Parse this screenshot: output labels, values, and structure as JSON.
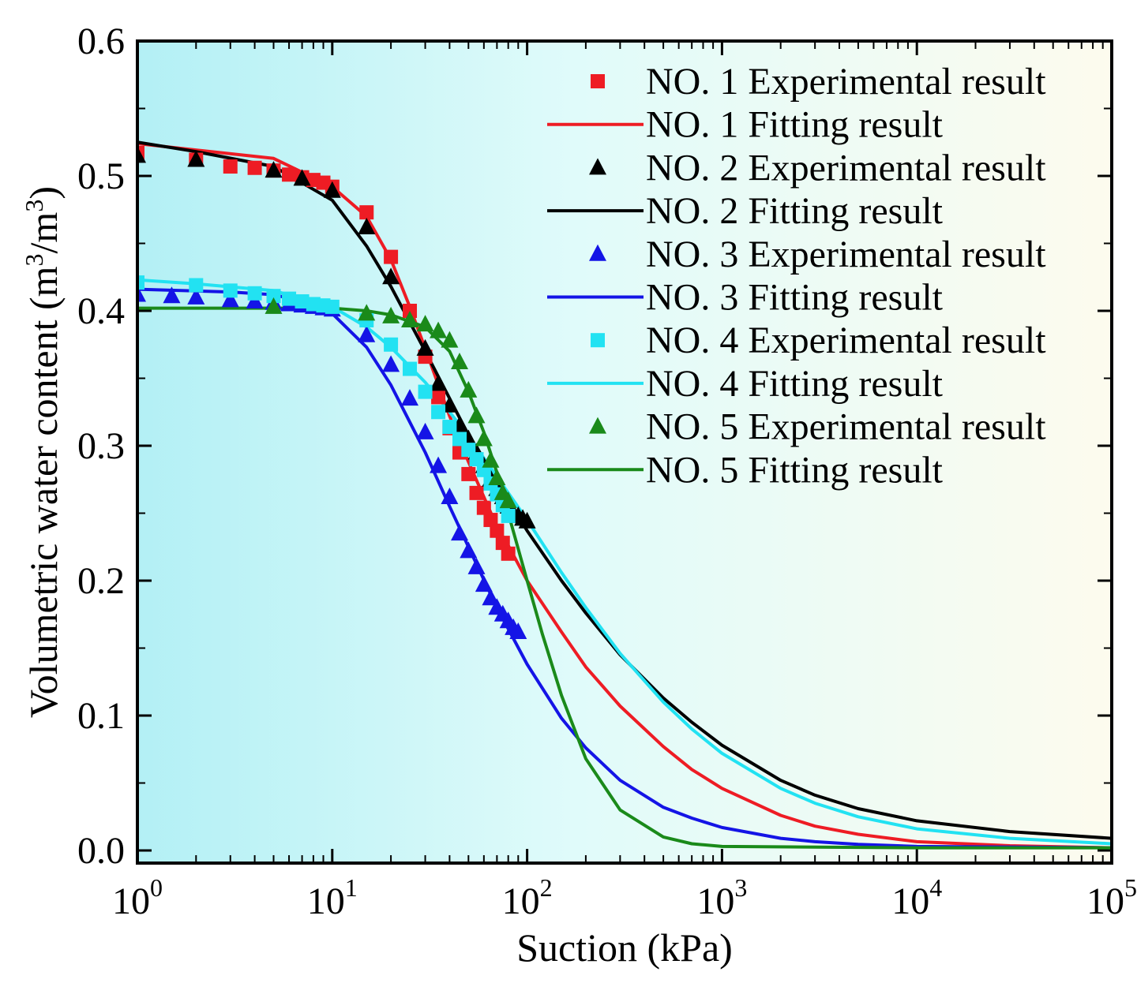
{
  "chart_data": {
    "type": "line",
    "title": "",
    "xlabel": "Suction (kPa)",
    "ylabel_main": "Volumetric water content (m",
    "ylabel_sup1": "3",
    "ylabel_mid": "/m",
    "ylabel_sup2": "3",
    "ylabel_end": ")",
    "xscale": "log",
    "xlim": [
      1,
      100000
    ],
    "ylim": [
      0.0,
      0.6
    ],
    "x_ticks": [
      {
        "base": "10",
        "exp": "0",
        "value": 1
      },
      {
        "base": "10",
        "exp": "1",
        "value": 10
      },
      {
        "base": "10",
        "exp": "2",
        "value": 100
      },
      {
        "base": "10",
        "exp": "3",
        "value": 1000
      },
      {
        "base": "10",
        "exp": "4",
        "value": 10000
      },
      {
        "base": "10",
        "exp": "5",
        "value": 100000
      }
    ],
    "y_ticks": [
      "0.0",
      "0.1",
      "0.2",
      "0.3",
      "0.4",
      "0.5",
      "0.6"
    ],
    "y_tick_values": [
      0.0,
      0.1,
      0.2,
      0.3,
      0.4,
      0.5,
      0.6
    ],
    "legend_position": "top-right",
    "background_gradient": [
      "#b3f0f5",
      "#e0fbfa",
      "#fdfbee"
    ],
    "series": [
      {
        "name": "NO. 1 Experimental result",
        "kind": "scatter",
        "marker": "square",
        "color": "#ee1c24",
        "x": [
          1,
          2,
          3,
          4,
          5,
          6,
          7,
          8,
          9,
          10,
          15,
          20,
          25,
          30,
          35,
          40,
          45,
          50,
          55,
          60,
          65,
          70,
          75,
          80
        ],
        "y": [
          0.517,
          0.512,
          0.507,
          0.506,
          0.504,
          0.501,
          0.499,
          0.497,
          0.495,
          0.492,
          0.473,
          0.44,
          0.4,
          0.366,
          0.336,
          0.313,
          0.295,
          0.279,
          0.265,
          0.254,
          0.245,
          0.237,
          0.228,
          0.22
        ]
      },
      {
        "name": "NO. 1 Fitting result",
        "kind": "line",
        "color": "#ee1c24",
        "x": [
          1,
          5,
          10,
          15,
          20,
          25,
          30,
          40,
          50,
          70,
          80,
          100,
          150,
          200,
          300,
          500,
          700,
          1000,
          2000,
          3000,
          5000,
          10000,
          30000,
          100000
        ],
        "y": [
          0.524,
          0.513,
          0.492,
          0.47,
          0.438,
          0.403,
          0.372,
          0.322,
          0.288,
          0.24,
          0.226,
          0.2,
          0.162,
          0.136,
          0.107,
          0.077,
          0.06,
          0.046,
          0.026,
          0.018,
          0.012,
          0.0065,
          0.0035,
          0.002
        ]
      },
      {
        "name": "NO. 2 Experimental result",
        "kind": "scatter",
        "marker": "triangle",
        "color": "#000000",
        "x": [
          1,
          2,
          5,
          7,
          10,
          15,
          20,
          30,
          35,
          40,
          45,
          50,
          55,
          60,
          65,
          70,
          75,
          80,
          85,
          90,
          95,
          100
        ],
        "y": [
          0.515,
          0.512,
          0.504,
          0.498,
          0.489,
          0.462,
          0.425,
          0.372,
          0.346,
          0.33,
          0.315,
          0.305,
          0.295,
          0.285,
          0.275,
          0.268,
          0.262,
          0.255,
          0.25,
          0.248,
          0.246,
          0.244
        ]
      },
      {
        "name": "NO. 2 Fitting result",
        "kind": "line",
        "color": "#000000",
        "x": [
          1,
          2,
          5,
          10,
          15,
          20,
          30,
          40,
          50,
          70,
          100,
          150,
          200,
          300,
          500,
          700,
          1000,
          2000,
          3000,
          5000,
          10000,
          30000,
          100000
        ],
        "y": [
          0.525,
          0.518,
          0.507,
          0.482,
          0.448,
          0.418,
          0.37,
          0.335,
          0.308,
          0.273,
          0.237,
          0.2,
          0.176,
          0.145,
          0.113,
          0.095,
          0.078,
          0.052,
          0.041,
          0.031,
          0.022,
          0.014,
          0.009
        ]
      },
      {
        "name": "NO. 3 Experimental result",
        "kind": "scatter",
        "marker": "triangle",
        "color": "#1414e6",
        "x": [
          1,
          1.5,
          2,
          3,
          4,
          5,
          6,
          7,
          8,
          9,
          10,
          15,
          20,
          25,
          30,
          35,
          40,
          45,
          50,
          55,
          60,
          65,
          70,
          75,
          80,
          85,
          90
        ],
        "y": [
          0.412,
          0.411,
          0.41,
          0.408,
          0.407,
          0.406,
          0.405,
          0.404,
          0.403,
          0.402,
          0.401,
          0.382,
          0.36,
          0.335,
          0.31,
          0.285,
          0.262,
          0.235,
          0.222,
          0.21,
          0.197,
          0.187,
          0.18,
          0.175,
          0.17,
          0.165,
          0.162
        ]
      },
      {
        "name": "NO. 3 Fitting result",
        "kind": "line",
        "color": "#1414e6",
        "x": [
          1,
          3,
          5,
          8,
          10,
          15,
          20,
          30,
          40,
          50,
          70,
          100,
          150,
          200,
          300,
          500,
          700,
          1000,
          2000,
          3000,
          5000,
          10000,
          100000
        ],
        "y": [
          0.416,
          0.414,
          0.412,
          0.405,
          0.398,
          0.373,
          0.345,
          0.295,
          0.255,
          0.225,
          0.18,
          0.138,
          0.098,
          0.076,
          0.052,
          0.032,
          0.024,
          0.017,
          0.009,
          0.0065,
          0.0045,
          0.003,
          0.002
        ]
      },
      {
        "name": "NO. 4 Experimental result",
        "kind": "scatter",
        "marker": "square",
        "color": "#22e2f2",
        "x": [
          1,
          2,
          3,
          4,
          5,
          6,
          7,
          8,
          9,
          10,
          15,
          20,
          25,
          30,
          35,
          40,
          45,
          50,
          55,
          60,
          65,
          70,
          75,
          80
        ],
        "y": [
          0.421,
          0.419,
          0.415,
          0.413,
          0.411,
          0.409,
          0.407,
          0.405,
          0.404,
          0.403,
          0.393,
          0.375,
          0.357,
          0.34,
          0.325,
          0.314,
          0.305,
          0.297,
          0.29,
          0.282,
          0.272,
          0.264,
          0.256,
          0.248
        ]
      },
      {
        "name": "NO. 4 Fitting result",
        "kind": "line",
        "color": "#22e2f2",
        "x": [
          1,
          2,
          5,
          10,
          15,
          20,
          30,
          40,
          50,
          70,
          100,
          150,
          200,
          300,
          500,
          700,
          1000,
          2000,
          3000,
          5000,
          10000,
          30000,
          100000
        ],
        "y": [
          0.423,
          0.42,
          0.415,
          0.403,
          0.388,
          0.373,
          0.347,
          0.325,
          0.307,
          0.277,
          0.245,
          0.206,
          0.18,
          0.146,
          0.11,
          0.09,
          0.072,
          0.046,
          0.035,
          0.025,
          0.016,
          0.009,
          0.005
        ]
      },
      {
        "name": "NO. 5 Experimental result",
        "kind": "scatter",
        "marker": "triangle",
        "color": "#1a8a1a",
        "x": [
          5,
          15,
          20,
          25,
          30,
          35,
          40,
          45,
          50,
          55,
          60,
          65,
          70,
          75,
          80
        ],
        "y": [
          0.403,
          0.398,
          0.396,
          0.393,
          0.39,
          0.385,
          0.378,
          0.362,
          0.341,
          0.322,
          0.305,
          0.289,
          0.276,
          0.265,
          0.259
        ]
      },
      {
        "name": "NO. 5 Fitting result",
        "kind": "line",
        "color": "#1a8a1a",
        "x": [
          1,
          10,
          15,
          20,
          30,
          40,
          50,
          60,
          70,
          80,
          100,
          120,
          150,
          200,
          300,
          500,
          700,
          1000,
          10000,
          100000
        ],
        "y": [
          0.402,
          0.402,
          0.4,
          0.397,
          0.388,
          0.37,
          0.34,
          0.31,
          0.28,
          0.25,
          0.2,
          0.16,
          0.115,
          0.068,
          0.03,
          0.01,
          0.005,
          0.003,
          0.002,
          0.002
        ]
      }
    ]
  }
}
